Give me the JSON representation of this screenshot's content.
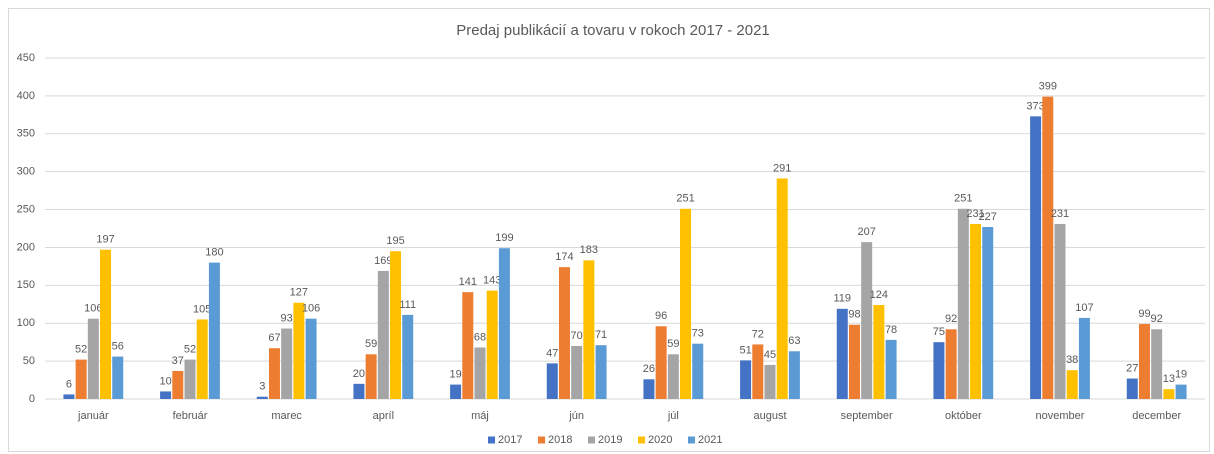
{
  "chart_data": {
    "type": "bar",
    "title": "Predaj publikácií a tovaru v rokoch 2017 - 2021",
    "categories": [
      "január",
      "február",
      "marec",
      "apríl",
      "máj",
      "jún",
      "júl",
      "august",
      "september",
      "október",
      "november",
      "december"
    ],
    "series": [
      {
        "name": "2017",
        "color": "#4472c4",
        "values": [
          6,
          10,
          3,
          20,
          19,
          47,
          26,
          51,
          119,
          75,
          373,
          27
        ]
      },
      {
        "name": "2018",
        "color": "#ed7d31",
        "values": [
          52,
          37,
          67,
          59,
          141,
          174,
          96,
          72,
          98,
          92,
          399,
          99
        ]
      },
      {
        "name": "2019",
        "color": "#a5a5a5",
        "values": [
          106,
          52,
          93,
          169,
          68,
          70,
          59,
          45,
          207,
          251,
          231,
          92
        ]
      },
      {
        "name": "2020",
        "color": "#ffc000",
        "values": [
          197,
          105,
          127,
          195,
          143,
          183,
          251,
          291,
          124,
          231,
          38,
          13
        ]
      },
      {
        "name": "2021",
        "color": "#5b9bd5",
        "values": [
          56,
          180,
          106,
          111,
          199,
          71,
          73,
          63,
          78,
          227,
          107,
          19
        ]
      }
    ],
    "ylim": [
      0,
      450
    ],
    "yticks": [
      0,
      50,
      100,
      150,
      200,
      250,
      300,
      350,
      400,
      450
    ],
    "grid": true,
    "legend": "bottom"
  }
}
